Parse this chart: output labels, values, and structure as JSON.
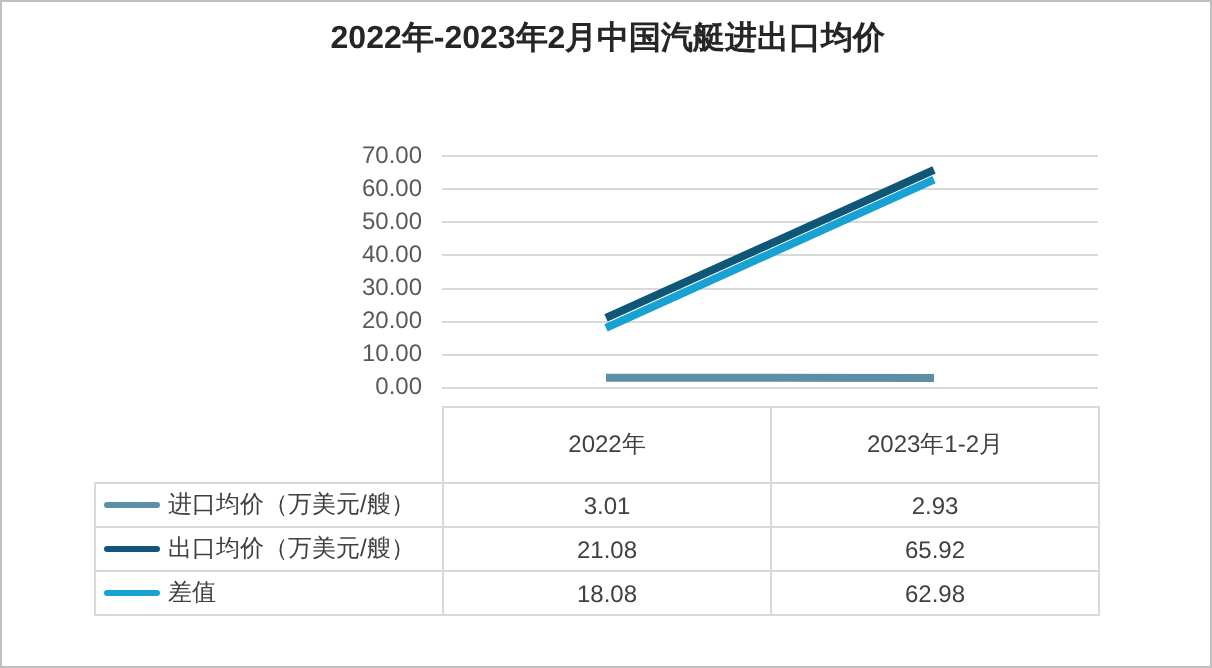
{
  "chart_data": {
    "type": "line",
    "title": "2022年-2023年2月中国汽艇进出口均价",
    "categories": [
      "2022年",
      "2023年1-2月"
    ],
    "series": [
      {
        "name": "进口均价（万美元/艘）",
        "color": "#5a8fa6",
        "values": [
          3.01,
          2.93
        ]
      },
      {
        "name": "出口均价（万美元/艘）",
        "color": "#0f5677",
        "values": [
          21.08,
          65.92
        ]
      },
      {
        "name": "差值",
        "color": "#17a2d3",
        "values": [
          18.08,
          62.98
        ]
      }
    ],
    "ylim": [
      0,
      70
    ],
    "yticks": [
      {
        "value": 0,
        "label": "0.00"
      },
      {
        "value": 10,
        "label": "10.00"
      },
      {
        "value": 20,
        "label": "20.00"
      },
      {
        "value": 30,
        "label": "30.00"
      },
      {
        "value": 40,
        "label": "40.00"
      },
      {
        "value": 50,
        "label": "50.00"
      },
      {
        "value": 60,
        "label": "60.00"
      },
      {
        "value": 70,
        "label": "70.00"
      }
    ],
    "grid": "y",
    "legend": "bottom",
    "data_labels": true,
    "marker": "none"
  }
}
